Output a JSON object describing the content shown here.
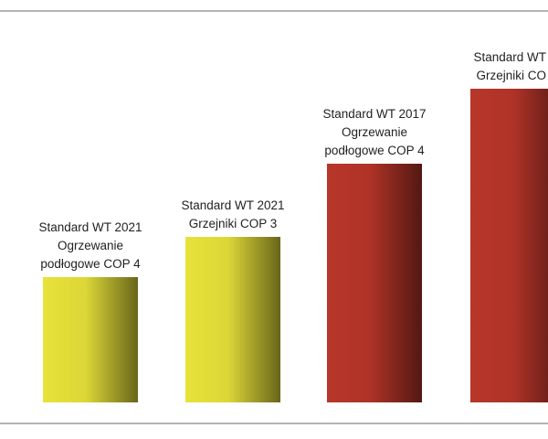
{
  "chart_data": {
    "type": "bar",
    "categories": [
      [
        "Standard WT 2021",
        "Ogrzewanie",
        "podłogowe COP 4"
      ],
      [
        "Standard WT 2021",
        "Grzejniki COP 3"
      ],
      [
        "Standard WT 2017",
        "Ogrzewanie",
        "podłogowe COP 4"
      ],
      [
        "Standard WT",
        "Grzejniki CO"
      ]
    ],
    "values": [
      137,
      181,
      261,
      343
    ],
    "colors": [
      "#e8e23a",
      "#e8e23a",
      "#b8362a",
      "#b8362a"
    ]
  }
}
